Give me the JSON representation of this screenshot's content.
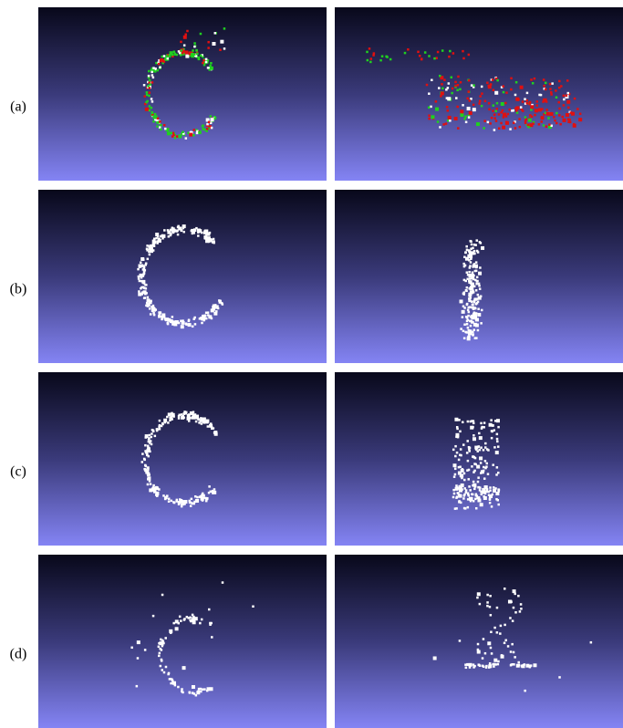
{
  "figure": {
    "rows": [
      {
        "label": "(a)"
      },
      {
        "label": "(b)"
      },
      {
        "label": "(c)"
      },
      {
        "label": "(d)"
      }
    ]
  }
}
